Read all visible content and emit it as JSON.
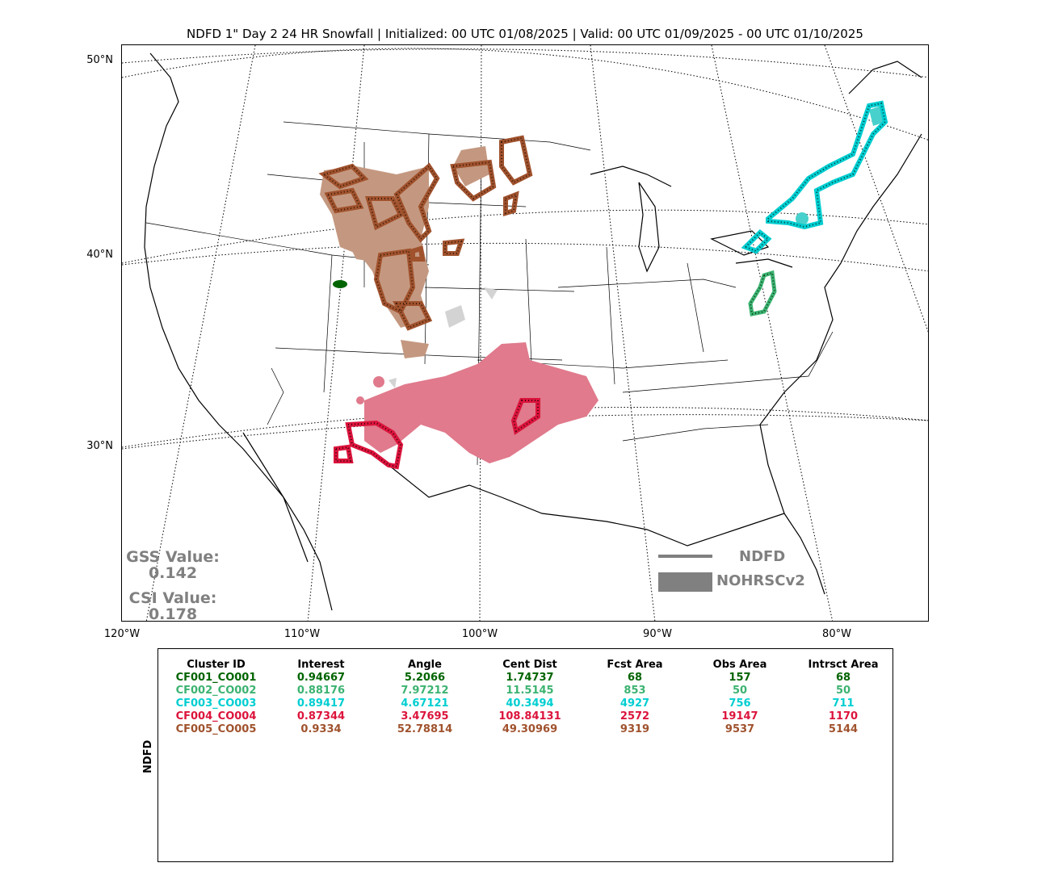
{
  "title": "NDFD 1\" Day 2 24 HR Snowfall | Initialized: 00 UTC 01/08/2025 | Valid: 00 UTC 01/09/2025 - 00 UTC 01/10/2025",
  "lat_labels": [
    "50°N",
    "40°N",
    "30°N"
  ],
  "lon_labels": [
    "120°W",
    "110°W",
    "100°W",
    "90°W",
    "80°W"
  ],
  "scores": {
    "gss_label": "GSS Value:",
    "gss_value": "0.142",
    "csi_label": "CSI Value:",
    "csi_value": "0.178"
  },
  "legend": {
    "forecast_label": "NDFD",
    "observed_label": "NOHRSCv2",
    "color": "#808080"
  },
  "table": {
    "row_label": "NDFD",
    "headers": [
      "Cluster ID",
      "Interest",
      "Angle",
      "Cent Dist",
      "Fcst Area",
      "Obs Area",
      "Intrsct Area"
    ],
    "rows": [
      {
        "color": "#006400",
        "cells": [
          "CF001_CO001",
          "0.94667",
          "5.2066",
          "1.74737",
          "68",
          "157",
          "68"
        ]
      },
      {
        "color": "#3cb371",
        "cells": [
          "CF002_CO002",
          "0.88176",
          "7.97212",
          "11.5145",
          "853",
          "50",
          "50"
        ]
      },
      {
        "color": "#00ced1",
        "cells": [
          "CF003_CO003",
          "0.89417",
          "4.67121",
          "40.3494",
          "4927",
          "756",
          "711"
        ]
      },
      {
        "color": "#dc143c",
        "cells": [
          "CF004_CO004",
          "0.87344",
          "3.47695",
          "108.84131",
          "2572",
          "19147",
          "1170"
        ]
      },
      {
        "color": "#a0522d",
        "cells": [
          "CF005_CO005",
          "0.9334",
          "52.78814",
          "49.30969",
          "9319",
          "9537",
          "5144"
        ]
      }
    ]
  },
  "cluster_colors": {
    "CF001": "#006400",
    "CF002": "#3cb371",
    "CF003": "#00ced1",
    "CF004": "#dc143c",
    "CF005": "#a0522d",
    "unmatched_obs": "#d3d3d3"
  }
}
